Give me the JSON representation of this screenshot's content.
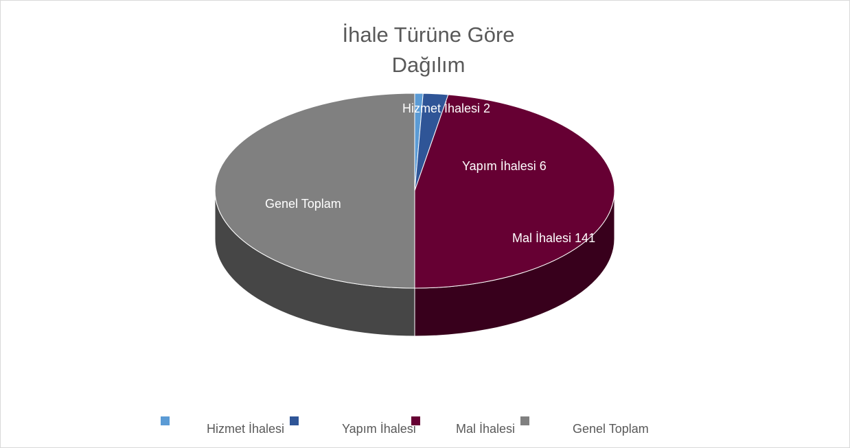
{
  "chart_data": {
    "type": "pie",
    "title": "İhale Türüne Göre Dağılım",
    "categories": [
      "Hizmet İhalesi",
      "Yapım İhalesi",
      "Mal İhalesi",
      "Genel Toplam"
    ],
    "values": [
      2,
      6,
      141,
      149
    ],
    "value_labels": [
      "2",
      "6",
      "141",
      null
    ],
    "colors": [
      "#5b9bd5",
      "#2f5597",
      "#660033",
      "#808080"
    ],
    "legend": "bottom"
  }
}
